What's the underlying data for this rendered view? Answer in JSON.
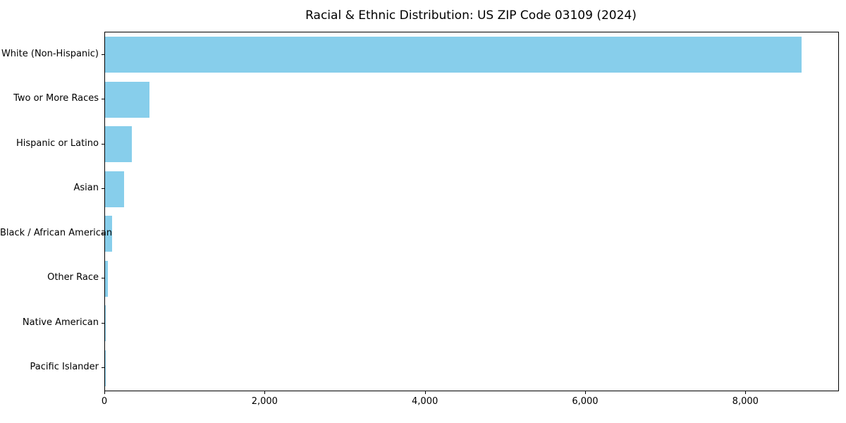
{
  "chart_data": {
    "type": "bar",
    "orientation": "horizontal",
    "title": "Racial & Ethnic Distribution: US ZIP Code 03109 (2024)",
    "categories": [
      "White (Non-Hispanic)",
      "Two or More Races",
      "Hispanic or Latino",
      "Asian",
      "Black / African American",
      "Other Race",
      "Native American",
      "Pacific Islander"
    ],
    "values": [
      8690,
      555,
      335,
      240,
      90,
      35,
      10,
      3
    ],
    "bar_color": "#87CEEB",
    "xlabel": "",
    "ylabel": "",
    "xlim": [
      0,
      9150
    ],
    "xticks": [
      {
        "value": 0,
        "label": "0"
      },
      {
        "value": 2000,
        "label": "2,000"
      },
      {
        "value": 4000,
        "label": "4,000"
      },
      {
        "value": 6000,
        "label": "6,000"
      },
      {
        "value": 8000,
        "label": "8,000"
      }
    ],
    "grid": false,
    "legend": "none"
  }
}
